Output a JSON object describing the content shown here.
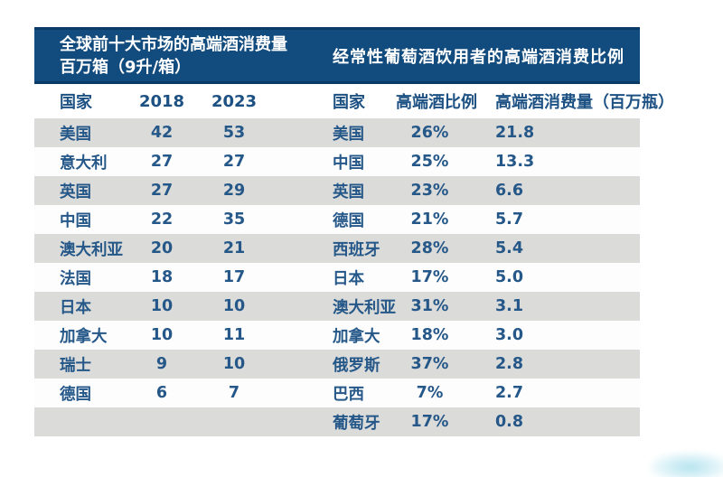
{
  "colors": {
    "band_bg": "#124b7d",
    "band_edge": "#0a3a66",
    "band_text": "#ffffff",
    "stripe_row": "#dbdbd9",
    "white_row": "#fdfdfd",
    "cell_text": "#255889"
  },
  "left_table": {
    "title_line1": "全球前十大市场的高端酒消费量",
    "title_line2": "百万箱（9升/箱）",
    "columns": [
      "国家",
      "2018",
      "2023"
    ]
  },
  "right_table": {
    "title": "经常性葡萄酒饮用者的高端酒消费比例",
    "columns": [
      "国家",
      "高端酒比例",
      "高端酒消费量（百万瓶）"
    ]
  },
  "rows": [
    {
      "l_country": "美国",
      "l_2018": "42",
      "l_2023": "53",
      "r_country": "美国",
      "r_ratio": "26%",
      "r_volume": "21.8"
    },
    {
      "l_country": "意大利",
      "l_2018": "27",
      "l_2023": "27",
      "r_country": "中国",
      "r_ratio": "25%",
      "r_volume": "13.3"
    },
    {
      "l_country": "英国",
      "l_2018": "27",
      "l_2023": "29",
      "r_country": "英国",
      "r_ratio": "23%",
      "r_volume": "6.6"
    },
    {
      "l_country": "中国",
      "l_2018": "22",
      "l_2023": "35",
      "r_country": "德国",
      "r_ratio": "21%",
      "r_volume": "5.7"
    },
    {
      "l_country": "澳大利亚",
      "l_2018": "20",
      "l_2023": "21",
      "r_country": "西班牙",
      "r_ratio": "28%",
      "r_volume": "5.4"
    },
    {
      "l_country": "法国",
      "l_2018": "18",
      "l_2023": "17",
      "r_country": "日本",
      "r_ratio": "17%",
      "r_volume": "5.0"
    },
    {
      "l_country": "日本",
      "l_2018": "10",
      "l_2023": "10",
      "r_country": "澳大利亚",
      "r_ratio": "31%",
      "r_volume": "3.1"
    },
    {
      "l_country": "加拿大",
      "l_2018": "10",
      "l_2023": "11",
      "r_country": "加拿大",
      "r_ratio": "18%",
      "r_volume": "3.0"
    },
    {
      "l_country": "瑞士",
      "l_2018": "9",
      "l_2023": "10",
      "r_country": "俄罗斯",
      "r_ratio": "37%",
      "r_volume": "2.8"
    },
    {
      "l_country": "德国",
      "l_2018": "6",
      "l_2023": "7",
      "r_country": "巴西",
      "r_ratio": "7%",
      "r_volume": "2.7"
    },
    {
      "l_country": "",
      "l_2018": "",
      "l_2023": "",
      "r_country": "葡萄牙",
      "r_ratio": "17%",
      "r_volume": "0.8"
    }
  ],
  "chart_data": [
    {
      "type": "table",
      "title": "全球前十大市场的高端酒消费量 百万箱（9升/箱）",
      "columns": [
        "国家",
        "2018",
        "2023"
      ],
      "rows": [
        [
          "美国",
          42,
          53
        ],
        [
          "意大利",
          27,
          27
        ],
        [
          "英国",
          27,
          29
        ],
        [
          "中国",
          22,
          35
        ],
        [
          "澳大利亚",
          20,
          21
        ],
        [
          "法国",
          18,
          17
        ],
        [
          "日本",
          10,
          10
        ],
        [
          "加拿大",
          10,
          11
        ],
        [
          "瑞士",
          9,
          10
        ],
        [
          "德国",
          6,
          7
        ]
      ]
    },
    {
      "type": "table",
      "title": "经常性葡萄酒饮用者的高端酒消费比例",
      "columns": [
        "国家",
        "高端酒比例",
        "高端酒消费量（百万瓶）"
      ],
      "rows": [
        [
          "美国",
          "26%",
          21.8
        ],
        [
          "中国",
          "25%",
          13.3
        ],
        [
          "英国",
          "23%",
          6.6
        ],
        [
          "德国",
          "21%",
          5.7
        ],
        [
          "西班牙",
          "28%",
          5.4
        ],
        [
          "日本",
          "17%",
          5.0
        ],
        [
          "澳大利亚",
          "31%",
          3.1
        ],
        [
          "加拿大",
          "18%",
          3.0
        ],
        [
          "俄罗斯",
          "37%",
          2.8
        ],
        [
          "巴西",
          "7%",
          2.7
        ],
        [
          "葡萄牙",
          "17%",
          0.8
        ]
      ]
    }
  ]
}
